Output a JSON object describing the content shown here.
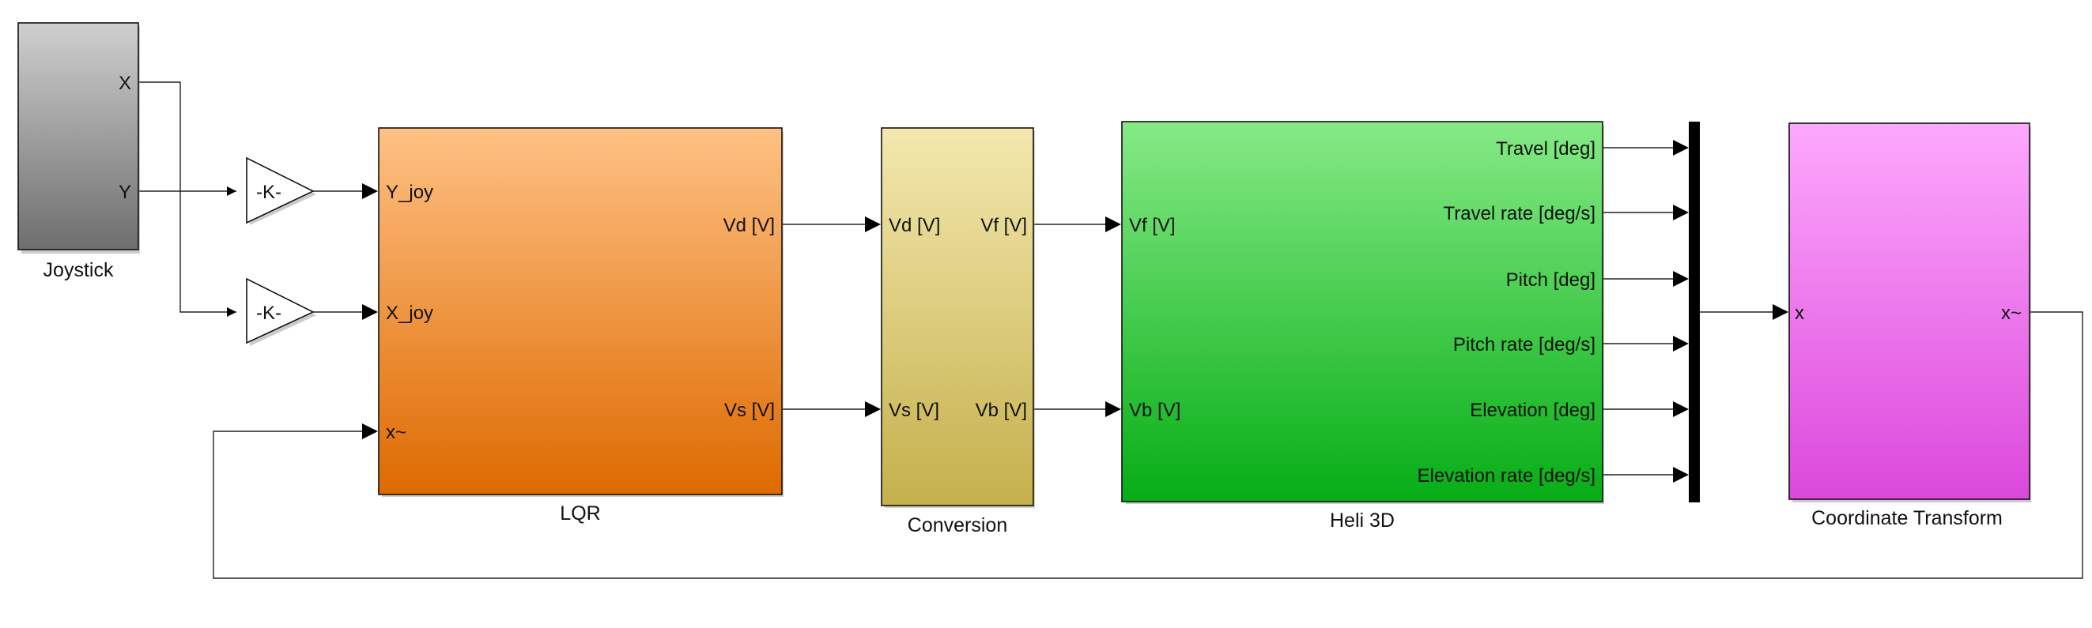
{
  "blocks": {
    "joystick": {
      "title": "Joystick",
      "ports_out": [
        "X",
        "Y"
      ]
    },
    "gain_top": {
      "text": "-K-"
    },
    "gain_bottom": {
      "text": "-K-"
    },
    "lqr": {
      "title": "LQR",
      "ports_in": [
        "Y_joy",
        "X_joy",
        "x~"
      ],
      "ports_out": [
        "Vd [V]",
        "Vs [V]"
      ]
    },
    "conversion": {
      "title": "Conversion",
      "ports_in": [
        "Vd [V]",
        "Vs [V]"
      ],
      "ports_out": [
        "Vf [V]",
        "Vb [V]"
      ]
    },
    "heli": {
      "title": "Heli 3D",
      "ports_in": [
        "Vf [V]",
        "Vb [V]"
      ],
      "ports_out": [
        "Travel [deg]",
        "Travel rate [deg/s]",
        "Pitch [deg]",
        "Pitch rate [deg/s]",
        "Elevation [deg]",
        "Elevation rate [deg/s]"
      ]
    },
    "transform": {
      "title": "Coordinate Transform",
      "port_in": "x",
      "port_out": "x~"
    }
  },
  "colors": {
    "joystick": [
      "#cfcfcf",
      "#6e6e6e"
    ],
    "lqr": [
      "#fec184",
      "#de6a00"
    ],
    "conversion": [
      "#f3e8ae",
      "#c5b04c"
    ],
    "heli": [
      "#86ea86",
      "#06ad16"
    ],
    "transform": [
      "#fda8fd",
      "#db48db"
    ],
    "mux": "#000000"
  }
}
